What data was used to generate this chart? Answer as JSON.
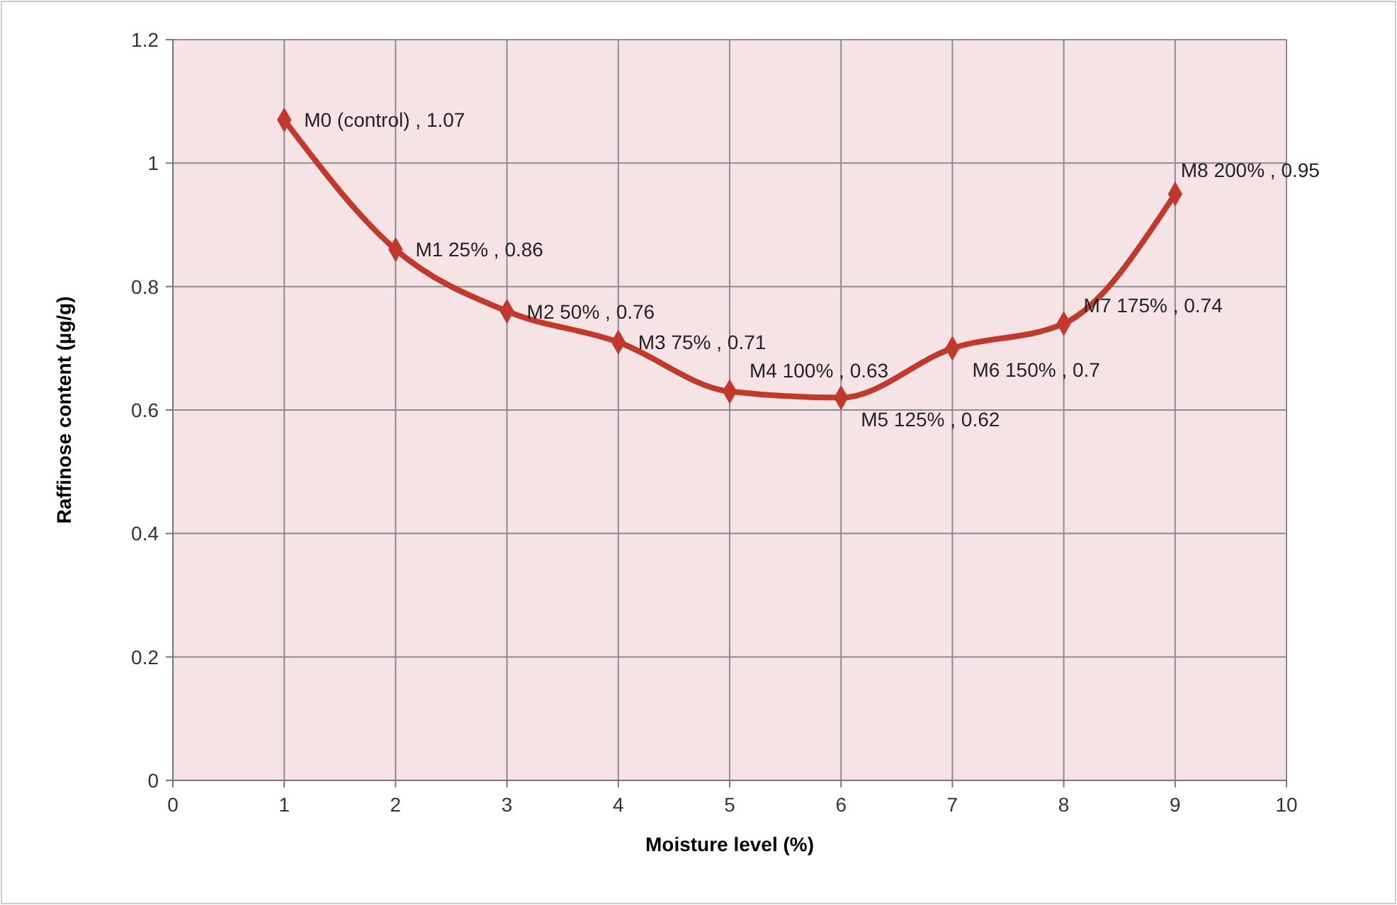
{
  "chart_data": {
    "type": "line",
    "xlabel": "Moisture level (%)",
    "ylabel": "Raffinose content (µg/g)",
    "x": [
      1,
      2,
      3,
      4,
      5,
      6,
      7,
      8,
      9
    ],
    "series": [
      {
        "color": "#c0392b",
        "values": [
          1.07,
          0.86,
          0.76,
          0.71,
          0.63,
          0.62,
          0.7,
          0.74,
          0.95
        ],
        "value_labels": [
          "M0  (control) , 1.07",
          "M1  25% , 0.86",
          "M2  50% , 0.76",
          "M3  75% , 0.71",
          "M4  100% , 0.63",
          "M5  125% , 0.62",
          "M6  150% , 0.7",
          "M7  175% , 0.74",
          "M8  200% , 0.95"
        ]
      }
    ],
    "xlim": [
      0,
      10
    ],
    "xticks": [
      0,
      1,
      2,
      3,
      4,
      5,
      6,
      7,
      8,
      9,
      10
    ],
    "ylim": [
      0,
      1.2
    ],
    "yticks": [
      0,
      0.2,
      0.4,
      0.6,
      0.8,
      1,
      1.2
    ],
    "grid": true,
    "marker": "diamond",
    "line_style": "solid"
  }
}
